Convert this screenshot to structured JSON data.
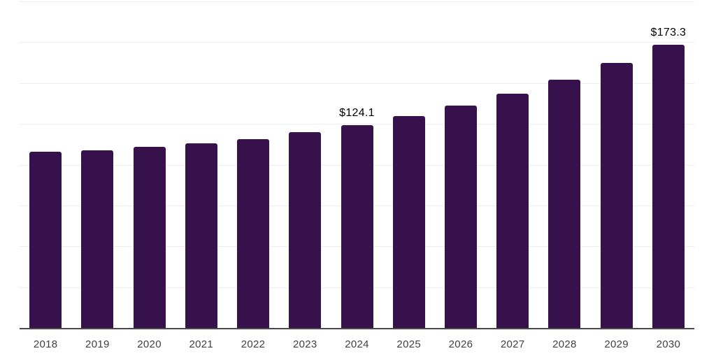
{
  "chart_data": {
    "type": "bar",
    "categories": [
      "2018",
      "2019",
      "2020",
      "2021",
      "2022",
      "2023",
      "2024",
      "2025",
      "2026",
      "2027",
      "2028",
      "2029",
      "2030"
    ],
    "values": [
      107.8,
      109.0,
      110.9,
      112.9,
      115.6,
      119.8,
      124.1,
      129.8,
      136.2,
      143.3,
      152.2,
      162.2,
      173.3
    ],
    "value_labels": {
      "2024": "$124.1",
      "2030": "$173.3"
    },
    "ylim": [
      0,
      200
    ],
    "gridline_step": 25,
    "grid": "horizontal-only",
    "legend_position": "none",
    "y_tick_labels_visible": false,
    "colors": {
      "bar": "#36114b",
      "gridline": "#ededed",
      "axis_line": "#4a4a4a",
      "value_label": "#000000",
      "tick_label": "#404040",
      "background": "#ffffff"
    }
  }
}
